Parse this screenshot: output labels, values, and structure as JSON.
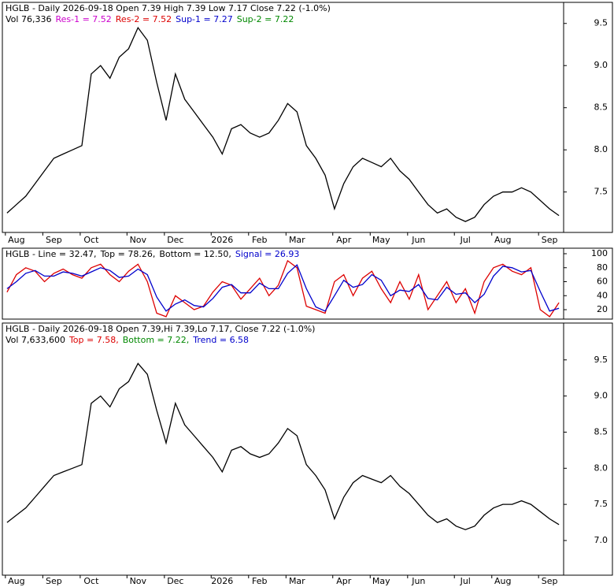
{
  "chart_data": [
    {
      "type": "line",
      "header": [
        [
          {
            "text": "HGLB - Daily 2026-09-18 Open 7.39  High 7.39  Low 7.17  Close 7.22 (-1.0%)",
            "color": "#000000"
          }
        ],
        [
          {
            "text": "Vol 76,336",
            "color": "#000000"
          },
          {
            "text": "Res-1 = 7.52",
            "color": "#cc00cc"
          },
          {
            "text": "Res-2 = 7.52",
            "color": "#dd0000"
          },
          {
            "text": "Sup-1 = 7.27",
            "color": "#0000cc"
          },
          {
            "text": "Sup-2 = 7.22",
            "color": "#008800"
          }
        ]
      ],
      "categories": [
        null,
        "Aug",
        null,
        null,
        null,
        "Sep",
        null,
        null,
        null,
        "Oct",
        null,
        null,
        null,
        null,
        "Nov",
        null,
        null,
        null,
        "Dec",
        null,
        null,
        null,
        null,
        "2026",
        null,
        null,
        null,
        "Feb",
        null,
        null,
        null,
        "Mar",
        null,
        null,
        null,
        null,
        "Apr",
        null,
        null,
        null,
        "May",
        null,
        null,
        null,
        "Jun",
        null,
        null,
        null,
        null,
        "Jul",
        null,
        null,
        null,
        "Aug",
        null,
        null,
        null,
        null,
        "Sep",
        null
      ],
      "series": [
        {
          "name": "HGLB",
          "color": "#000000",
          "values": [
            7.25,
            7.35,
            7.45,
            7.6,
            7.75,
            7.9,
            7.95,
            8.0,
            8.05,
            8.9,
            9.0,
            8.85,
            9.1,
            9.2,
            9.45,
            9.3,
            8.8,
            8.35,
            8.9,
            8.6,
            8.45,
            8.3,
            8.15,
            7.95,
            8.25,
            8.3,
            8.2,
            8.15,
            8.2,
            8.35,
            8.55,
            8.45,
            8.05,
            7.9,
            7.7,
            7.3,
            7.6,
            7.8,
            7.9,
            7.85,
            7.8,
            7.9,
            7.75,
            7.65,
            7.5,
            7.35,
            7.25,
            7.3,
            7.2,
            7.15,
            7.2,
            7.35,
            7.45,
            7.5,
            7.5,
            7.55,
            7.5,
            7.4,
            7.3,
            7.22
          ]
        }
      ],
      "ylim": [
        7.02,
        9.75
      ],
      "yticks": [
        {
          "value": 7.5,
          "label": "7.5"
        },
        {
          "value": 8,
          "label": "8.0"
        },
        {
          "value": 8.5,
          "label": "8.5"
        },
        {
          "value": 9,
          "label": "9.0"
        },
        {
          "value": 9.5,
          "label": "9.5"
        }
      ]
    },
    {
      "type": "line",
      "header": [
        [
          {
            "text": "HGLB - Line = 32.47,",
            "color": "#000000"
          },
          {
            "text": "Top = 78.26,",
            "color": "#000000"
          },
          {
            "text": "Bottom = 12.50,",
            "color": "#000000"
          },
          {
            "text": "Signal = 26.93",
            "color": "#0000cc"
          }
        ]
      ],
      "series": [
        {
          "name": "Line",
          "color": "#dd0000",
          "values": [
            45,
            70,
            80,
            75,
            60,
            72,
            78,
            70,
            65,
            80,
            85,
            70,
            60,
            75,
            85,
            60,
            15,
            10,
            40,
            30,
            20,
            25,
            45,
            60,
            55,
            35,
            50,
            65,
            40,
            55,
            90,
            80,
            25,
            20,
            15,
            60,
            70,
            40,
            65,
            75,
            50,
            30,
            60,
            35,
            70,
            20,
            40,
            60,
            30,
            50,
            15,
            60,
            80,
            85,
            75,
            70,
            80,
            20,
            10,
            30
          ]
        },
        {
          "name": "Signal",
          "color": "#0000cc",
          "values": [
            50,
            60,
            72,
            76,
            68,
            68,
            74,
            72,
            68,
            74,
            80,
            76,
            66,
            68,
            78,
            70,
            38,
            18,
            28,
            34,
            26,
            24,
            36,
            52,
            56,
            44,
            44,
            58,
            50,
            50,
            72,
            84,
            50,
            24,
            18,
            40,
            62,
            52,
            56,
            70,
            62,
            40,
            48,
            46,
            56,
            36,
            34,
            52,
            42,
            44,
            30,
            42,
            68,
            82,
            80,
            74,
            76,
            46,
            18,
            22
          ]
        }
      ],
      "ylim": [
        6.5,
        107.9
      ],
      "yticks": [
        20,
        40,
        60,
        80,
        100
      ]
    },
    {
      "type": "line",
      "header": [
        [
          {
            "text": "HGLB - Daily 2026-09-18 Open 7.39,Hi 7.39,Lo 7.17, Close 7.22 (-1.0%)",
            "color": "#000000"
          }
        ],
        [
          {
            "text": "Vol 7,633,600",
            "color": "#000000"
          },
          {
            "text": "Top = 7.58,",
            "color": "#dd0000"
          },
          {
            "text": "Bottom = 7.22,",
            "color": "#008800"
          },
          {
            "text": "Trend = 6.58",
            "color": "#0000cc"
          }
        ]
      ],
      "categories": [
        null,
        "Aug",
        null,
        null,
        null,
        "Sep",
        null,
        null,
        null,
        "Oct",
        null,
        null,
        null,
        null,
        "Nov",
        null,
        null,
        null,
        "Dec",
        null,
        null,
        null,
        null,
        "2026",
        null,
        null,
        null,
        "Feb",
        null,
        null,
        null,
        "Mar",
        null,
        null,
        null,
        null,
        "Apr",
        null,
        null,
        null,
        "May",
        null,
        null,
        null,
        "Jun",
        null,
        null,
        null,
        null,
        "Jul",
        null,
        null,
        null,
        "Aug",
        null,
        null,
        null,
        null,
        "Sep",
        null
      ],
      "series": [
        {
          "name": "HGLB",
          "color": "#000000",
          "values": [
            7.25,
            7.35,
            7.45,
            7.6,
            7.75,
            7.9,
            7.95,
            8.0,
            8.05,
            8.9,
            9.0,
            8.85,
            9.1,
            9.2,
            9.45,
            9.3,
            8.8,
            8.35,
            8.9,
            8.6,
            8.45,
            8.3,
            8.15,
            7.95,
            8.25,
            8.3,
            8.2,
            8.15,
            8.2,
            8.35,
            8.55,
            8.45,
            8.05,
            7.9,
            7.7,
            7.3,
            7.6,
            7.8,
            7.9,
            7.85,
            7.8,
            7.9,
            7.75,
            7.65,
            7.5,
            7.35,
            7.25,
            7.3,
            7.2,
            7.15,
            7.2,
            7.35,
            7.45,
            7.5,
            7.5,
            7.55,
            7.5,
            7.4,
            7.3,
            7.22
          ]
        }
      ],
      "ylim": [
        6.52,
        10.01
      ],
      "yticks": [
        {
          "value": 7,
          "label": "7.0"
        },
        {
          "value": 7.5,
          "label": "7.5"
        },
        {
          "value": 8,
          "label": "8.0"
        },
        {
          "value": 8.5,
          "label": "8.5"
        },
        {
          "value": 9,
          "label": "9.0"
        },
        {
          "value": 9.5,
          "label": "9.5"
        }
      ]
    }
  ]
}
